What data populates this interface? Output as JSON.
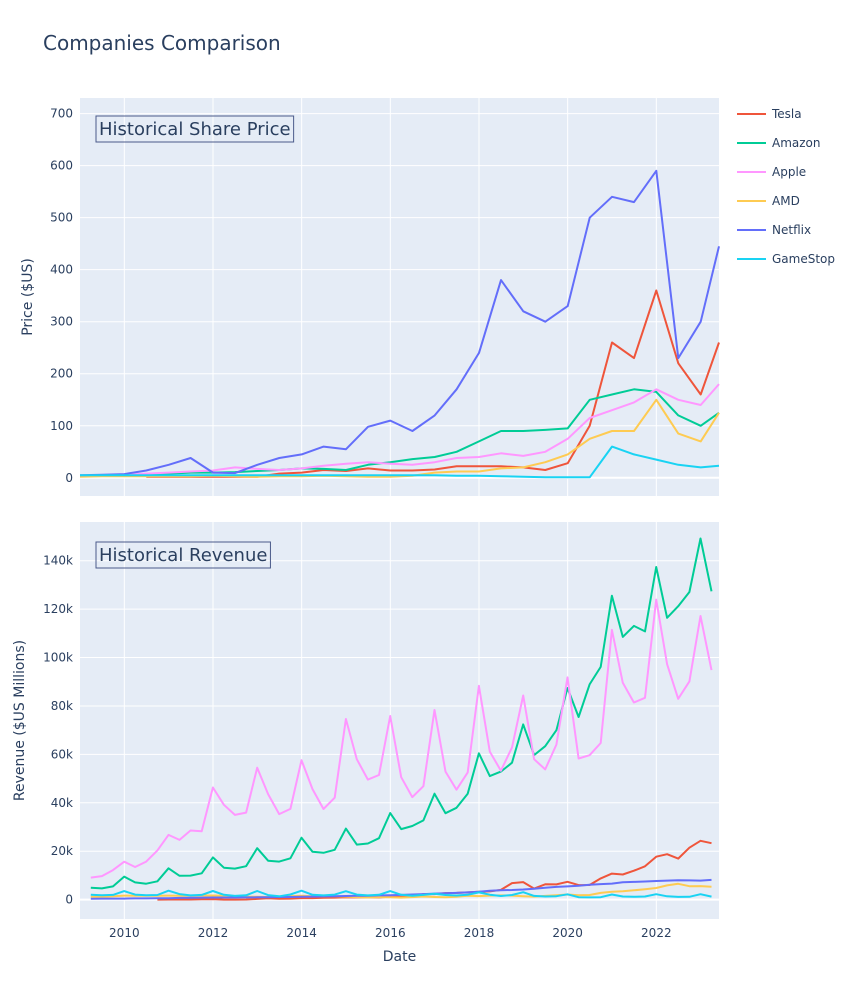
{
  "figure": {
    "title": "Companies Comparison"
  },
  "colors": {
    "Tesla": "#EF553B",
    "Amazon": "#00CC96",
    "Apple": "#FF97FF",
    "AMD": "#FECB52",
    "Netflix": "#636EFA",
    "GameStop": "#19D3F3",
    "plot_bg": "#E5ECF6",
    "text": "#2a3f5f"
  },
  "legend": {
    "placement": "right",
    "items": [
      "Tesla",
      "Amazon",
      "Apple",
      "AMD",
      "Netflix",
      "GameStop"
    ]
  },
  "chart_data": [
    {
      "type": "line",
      "annotation": "Historical Share Price",
      "xlabel": "",
      "ylabel": "Price ($US)",
      "xlim": [
        "2009-01-01",
        "2023-06-01"
      ],
      "ylim": [
        -35,
        730
      ],
      "yticks": [
        0,
        100,
        200,
        300,
        400,
        500,
        600,
        700
      ],
      "ytick_labels": [
        "0",
        "100",
        "200",
        "300",
        "400",
        "500",
        "600",
        "700"
      ],
      "grid": true,
      "x": [
        "2009-01-01",
        "2009-07-01",
        "2010-01-01",
        "2010-07-01",
        "2011-01-01",
        "2011-07-01",
        "2012-01-01",
        "2012-07-01",
        "2013-01-01",
        "2013-07-01",
        "2014-01-01",
        "2014-07-01",
        "2015-01-01",
        "2015-07-01",
        "2016-01-01",
        "2016-07-01",
        "2017-01-01",
        "2017-07-01",
        "2018-01-01",
        "2018-07-01",
        "2019-01-01",
        "2019-07-01",
        "2020-01-01",
        "2020-07-01",
        "2021-01-01",
        "2021-07-01",
        "2022-01-01",
        "2022-07-01",
        "2023-01-01",
        "2023-06-01"
      ],
      "series": [
        {
          "name": "Tesla",
          "values": [
            null,
            null,
            null,
            2,
            2,
            2,
            2,
            2,
            2,
            8,
            10,
            15,
            13,
            18,
            14,
            14,
            16,
            22,
            22,
            22,
            20,
            15,
            28,
            100,
            260,
            230,
            360,
            220,
            160,
            260
          ]
        },
        {
          "name": "Amazon",
          "values": [
            3,
            4,
            6,
            6,
            8,
            10,
            10,
            11,
            13,
            15,
            18,
            17,
            15,
            25,
            30,
            36,
            40,
            50,
            70,
            90,
            90,
            92,
            95,
            150,
            160,
            170,
            165,
            120,
            100,
            125
          ]
        },
        {
          "name": "Apple",
          "values": [
            4,
            5,
            6,
            8,
            10,
            12,
            14,
            20,
            17,
            15,
            18,
            23,
            27,
            30,
            27,
            25,
            30,
            38,
            40,
            47,
            42,
            50,
            75,
            115,
            130,
            145,
            170,
            150,
            140,
            180
          ]
        },
        {
          "name": "AMD",
          "values": [
            2,
            3,
            3,
            3,
            3,
            3,
            4,
            3,
            2,
            3,
            3,
            4,
            3,
            2,
            2,
            4,
            10,
            12,
            12,
            18,
            20,
            30,
            45,
            75,
            90,
            90,
            150,
            85,
            70,
            125
          ]
        },
        {
          "name": "Netflix",
          "values": [
            5,
            6,
            7,
            14,
            25,
            38,
            10,
            9,
            25,
            38,
            45,
            60,
            55,
            98,
            110,
            90,
            120,
            170,
            240,
            380,
            320,
            300,
            330,
            500,
            540,
            530,
            590,
            230,
            300,
            445
          ]
        },
        {
          "name": "GameStop",
          "values": [
            5,
            5,
            5,
            5,
            5,
            5,
            5,
            5,
            5,
            5,
            5,
            5,
            5,
            5,
            5,
            5,
            5,
            4,
            4,
            3,
            2,
            1,
            1,
            1,
            60,
            45,
            35,
            25,
            20,
            23
          ]
        }
      ]
    },
    {
      "type": "line",
      "annotation": "Historical Revenue",
      "xlabel": "Date",
      "ylabel": "Revenue ($US Millions)",
      "xlim": [
        "2009-01-01",
        "2023-06-01"
      ],
      "ylim": [
        -8000,
        156000
      ],
      "yticks": [
        0,
        20000,
        40000,
        60000,
        80000,
        100000,
        120000,
        140000
      ],
      "ytick_labels": [
        "0",
        "20k",
        "40k",
        "60k",
        "80k",
        "100k",
        "120k",
        "140k"
      ],
      "xticks": [
        "2010-01-01",
        "2012-01-01",
        "2014-01-01",
        "2016-01-01",
        "2018-01-01",
        "2020-01-01",
        "2022-01-01"
      ],
      "xtick_labels": [
        "2010",
        "2012",
        "2014",
        "2016",
        "2018",
        "2020",
        "2022"
      ],
      "grid": true,
      "x": [
        "2009-03-31",
        "2009-06-30",
        "2009-09-30",
        "2009-12-31",
        "2010-03-31",
        "2010-06-30",
        "2010-09-30",
        "2010-12-31",
        "2011-03-31",
        "2011-06-30",
        "2011-09-30",
        "2011-12-31",
        "2012-03-31",
        "2012-06-30",
        "2012-09-30",
        "2012-12-31",
        "2013-03-31",
        "2013-06-30",
        "2013-09-30",
        "2013-12-31",
        "2014-03-31",
        "2014-06-30",
        "2014-09-30",
        "2014-12-31",
        "2015-03-31",
        "2015-06-30",
        "2015-09-30",
        "2015-12-31",
        "2016-03-31",
        "2016-06-30",
        "2016-09-30",
        "2016-12-31",
        "2017-03-31",
        "2017-06-30",
        "2017-09-30",
        "2017-12-31",
        "2018-03-31",
        "2018-06-30",
        "2018-09-30",
        "2018-12-31",
        "2019-03-31",
        "2019-06-30",
        "2019-09-30",
        "2019-12-31",
        "2020-03-31",
        "2020-06-30",
        "2020-09-30",
        "2020-12-31",
        "2021-03-31",
        "2021-06-30",
        "2021-09-30",
        "2021-12-31",
        "2022-03-31",
        "2022-06-30",
        "2022-09-30",
        "2022-12-31",
        "2023-03-31"
      ],
      "series": [
        {
          "name": "Tesla",
          "values": [
            null,
            null,
            null,
            null,
            null,
            null,
            30,
            36,
            49,
            58,
            146,
            204,
            30,
            27,
            50,
            306,
            562,
            405,
            431,
            615,
            621,
            769,
            852,
            957,
            940,
            955,
            937,
            1214,
            1147,
            1270,
            2298,
            2285,
            2696,
            2790,
            2985,
            3288,
            3409,
            4002,
            6824,
            7226,
            4541,
            6350,
            6303,
            7384,
            5985,
            6036,
            8771,
            10744,
            10389,
            11958,
            13757,
            17719,
            18756,
            16934,
            21454,
            24318,
            23329
          ]
        },
        {
          "name": "Amazon",
          "values": [
            4889,
            4651,
            5449,
            9519,
            7131,
            6566,
            7560,
            12947,
            9857,
            9913,
            10876,
            17431,
            13185,
            12834,
            13806,
            21268,
            16070,
            15704,
            17092,
            25587,
            19741,
            19340,
            20579,
            29328,
            22717,
            23185,
            25358,
            35746,
            29128,
            30404,
            32714,
            43741,
            35714,
            37955,
            43744,
            60453,
            51042,
            52886,
            56576,
            72383,
            59700,
            63404,
            69981,
            87437,
            75452,
            88912,
            96145,
            125555,
            108518,
            113080,
            110812,
            137412,
            116444,
            121234,
            127101,
            149204,
            127358
          ]
        },
        {
          "name": "Apple",
          "values": [
            9084,
            9734,
            12207,
            15683,
            13499,
            15700,
            20343,
            26741,
            24667,
            28571,
            28270,
            46333,
            39186,
            35023,
            35966,
            54512,
            43603,
            35323,
            37472,
            57594,
            45646,
            37432,
            42123,
            74599,
            58010,
            49605,
            51501,
            75872,
            50557,
            42358,
            46852,
            78351,
            52896,
            45408,
            52579,
            88293,
            61137,
            53265,
            62900,
            84310,
            58015,
            53809,
            64040,
            91819,
            58313,
            59685,
            64698,
            111439,
            89584,
            81434,
            83360,
            123945,
            97278,
            82959,
            90146,
            117154,
            94836
          ]
        },
        {
          "name": "AMD",
          "values": [
            1177,
            1184,
            1396,
            1646,
            1574,
            1653,
            1618,
            1649,
            1613,
            1574,
            1690,
            1691,
            1585,
            1413,
            1269,
            1155,
            1088,
            1161,
            1461,
            1589,
            1397,
            1441,
            1429,
            1239,
            1030,
            942,
            1061,
            958,
            832,
            1027,
            1307,
            1106,
            984,
            1222,
            1643,
            1480,
            1647,
            1756,
            1653,
            1419,
            1272,
            1531,
            1801,
            2127,
            1786,
            1932,
            2801,
            3244,
            3445,
            3850,
            4313,
            4826,
            5887,
            6550,
            5565,
            5599,
            5353
          ]
        },
        {
          "name": "Netflix",
          "values": [
            394,
            409,
            423,
            444,
            494,
            520,
            553,
            596,
            719,
            789,
            822,
            876,
            870,
            889,
            905,
            945,
            1024,
            1069,
            1106,
            1175,
            1270,
            1340,
            1409,
            1484,
            1573,
            1645,
            1738,
            1823,
            1958,
            2105,
            2290,
            2478,
            2637,
            2785,
            2985,
            3286,
            3701,
            3907,
            3999,
            4187,
            4521,
            4923,
            5245,
            5467,
            5768,
            6148,
            6436,
            6644,
            7163,
            7342,
            7483,
            7709,
            7868,
            7970,
            7926,
            7852,
            8162
          ]
        },
        {
          "name": "GameStop",
          "values": [
            1982,
            1809,
            1957,
            3524,
            2082,
            1801,
            1899,
            3693,
            2281,
            1743,
            1947,
            3579,
            2002,
            1550,
            1774,
            3562,
            1865,
            1384,
            2107,
            3684,
            2001,
            1731,
            2092,
            3476,
            2061,
            1761,
            2016,
            3525,
            2016,
            1632,
            1959,
            2403,
            1930,
            1688,
            1989,
            2968,
            2039,
            1500,
            1935,
            3063,
            1547,
            1286,
            1439,
            2194,
            1021,
            942,
            1005,
            2122,
            1277,
            1183,
            1297,
            2254,
            1378,
            1136,
            1186,
            2226,
            1237
          ]
        }
      ]
    }
  ]
}
